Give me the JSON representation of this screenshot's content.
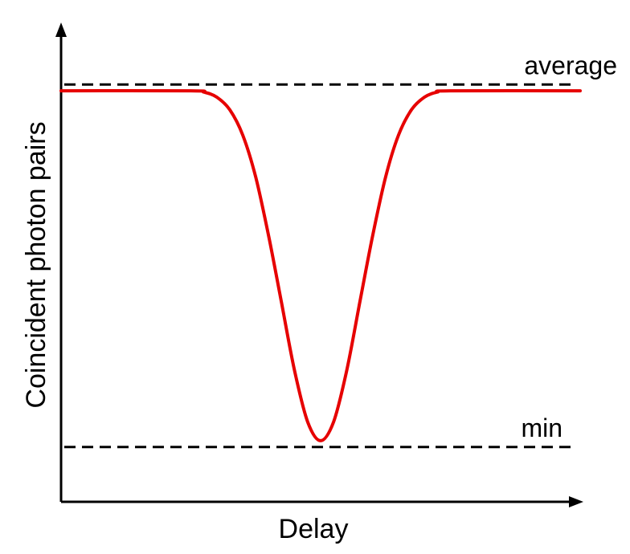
{
  "chart_data": {
    "type": "line",
    "title": "",
    "xlabel": "Delay",
    "ylabel": "Coincident photon pairs",
    "xlim": [
      -1,
      1
    ],
    "ylim": [
      0,
      1
    ],
    "grid": false,
    "legend": "none",
    "series": [
      {
        "color": "#e60000",
        "x": [
          -1.0,
          -0.5,
          -0.45,
          -0.4,
          -0.35,
          -0.3,
          -0.25,
          -0.2,
          -0.15,
          -0.1,
          -0.05,
          0.0,
          0.05,
          0.1,
          0.15,
          0.2,
          0.25,
          0.3,
          0.35,
          0.4,
          0.45,
          0.5,
          1.0
        ],
        "y": [
          0.975,
          0.975,
          0.972,
          0.96,
          0.93,
          0.87,
          0.77,
          0.63,
          0.47,
          0.31,
          0.19,
          0.145,
          0.19,
          0.31,
          0.47,
          0.63,
          0.77,
          0.87,
          0.93,
          0.96,
          0.972,
          0.975,
          0.975
        ]
      }
    ],
    "reference_lines": [
      {
        "label": "average",
        "y": 0.99
      },
      {
        "label": "min",
        "y": 0.13
      }
    ]
  }
}
